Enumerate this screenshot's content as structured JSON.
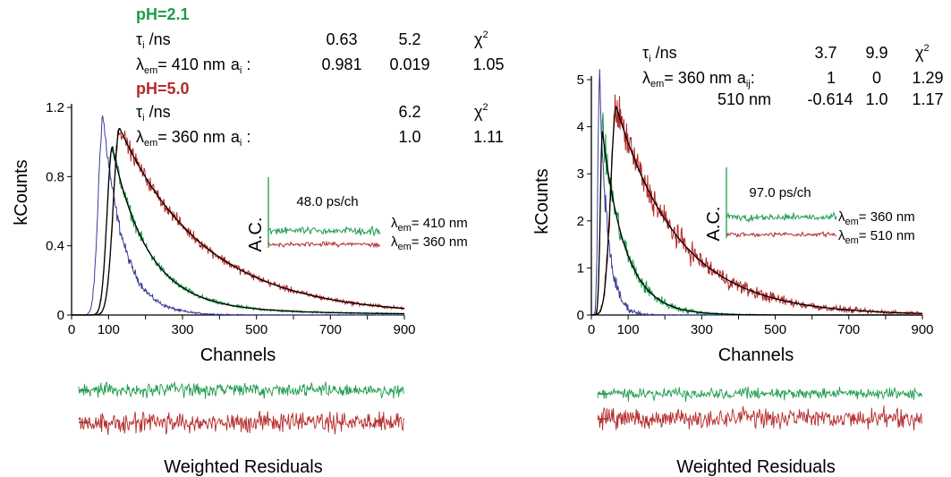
{
  "colors": {
    "blue": "#3a3b9a",
    "green": "#1e9c4e",
    "red": "#b52a2a",
    "fit": "#000000"
  },
  "chart_data": [
    {
      "type": "line",
      "xlabel": "Channels",
      "ylabel": "kCounts",
      "xlim": [
        0,
        900
      ],
      "ylim": [
        0,
        1.2
      ],
      "xticks": [
        "0",
        "100",
        "300",
        "500",
        "700",
        "900"
      ],
      "yticks": [
        "0",
        "0.4",
        "0.8",
        "1.2"
      ],
      "curves": [
        {
          "color": "blue",
          "peak_x": 85,
          "peak_y": 1.15,
          "rise": 18,
          "tau": 55
        },
        {
          "color": "green",
          "peak_x": 110,
          "peak_y": 0.97,
          "rise": 20,
          "tau": 95,
          "tail": 0.06
        },
        {
          "color": "red",
          "peak_x": 130,
          "peak_y": 1.08,
          "rise": 24,
          "tau": 230
        }
      ],
      "table": {
        "ph1": "pH=2.1",
        "tau_label": "τ",
        "tau_sub": "i",
        "tau_unit": " /ns",
        "ph1_taus": [
          "0.63",
          "5.2"
        ],
        "chi": "χ",
        "chi_sup": "2",
        "lam": "λ",
        "lam_sub": "em",
        "ph1_lambda": "= 410 nm",
        "a_label": "a",
        "a_sub": "i",
        "a_colon": " :",
        "ph1_amps": [
          "0.981",
          "0.019"
        ],
        "ph1_chi": "1.05",
        "ph2": "pH=5.0",
        "ph2_tau": "6.2",
        "ph2_lambda": "= 360 nm",
        "ph2_amp": "1.0",
        "ph2_chi": "1.11"
      },
      "inset": {
        "label": "48.0 ps/ch",
        "ac": "A.C.",
        "lines": [
          "= 410 nm",
          "= 360 nm"
        ]
      },
      "residuals_label": "Weighted Residuals"
    },
    {
      "type": "line",
      "xlabel": "Channels",
      "ylabel": "kCounts",
      "xlim": [
        0,
        900
      ],
      "ylim": [
        0,
        5
      ],
      "xticks": [
        "0",
        "100",
        "300",
        "500",
        "700",
        "900"
      ],
      "yticks": [
        "0",
        "1",
        "2",
        "3",
        "4",
        "5"
      ],
      "curves": [
        {
          "color": "blue",
          "peak_x": 22,
          "peak_y": 5.0,
          "rise": 6,
          "tau": 22
        },
        {
          "color": "green",
          "peak_x": 30,
          "peak_y": 3.9,
          "rise": 8,
          "tau": 62
        },
        {
          "color": "red",
          "peak_x": 68,
          "peak_y": 4.42,
          "rise": 22,
          "tau": 170
        }
      ],
      "table": {
        "tau_label": "τ",
        "tau_sub": "i",
        "tau_unit": " /ns",
        "taus": [
          "3.7",
          "9.9"
        ],
        "chi": "χ",
        "chi_sup": "2",
        "lam": "λ",
        "lam_sub": "em",
        "row1_lambda": "= 360 nm",
        "a_label": "a",
        "a_sub": "ij",
        "a_colon": ":",
        "row1_amps": [
          "1",
          "0"
        ],
        "row1_chi": "1.29",
        "row2_lambda": "510 nm",
        "row2_amps": [
          "-0.614",
          "1.0"
        ],
        "row2_chi": "1.17"
      },
      "inset": {
        "label": "97.0 ps/ch",
        "ac": "A.C.",
        "lines": [
          "= 360 nm",
          "= 510 nm"
        ]
      },
      "residuals_label": "Weighted Residuals"
    }
  ]
}
